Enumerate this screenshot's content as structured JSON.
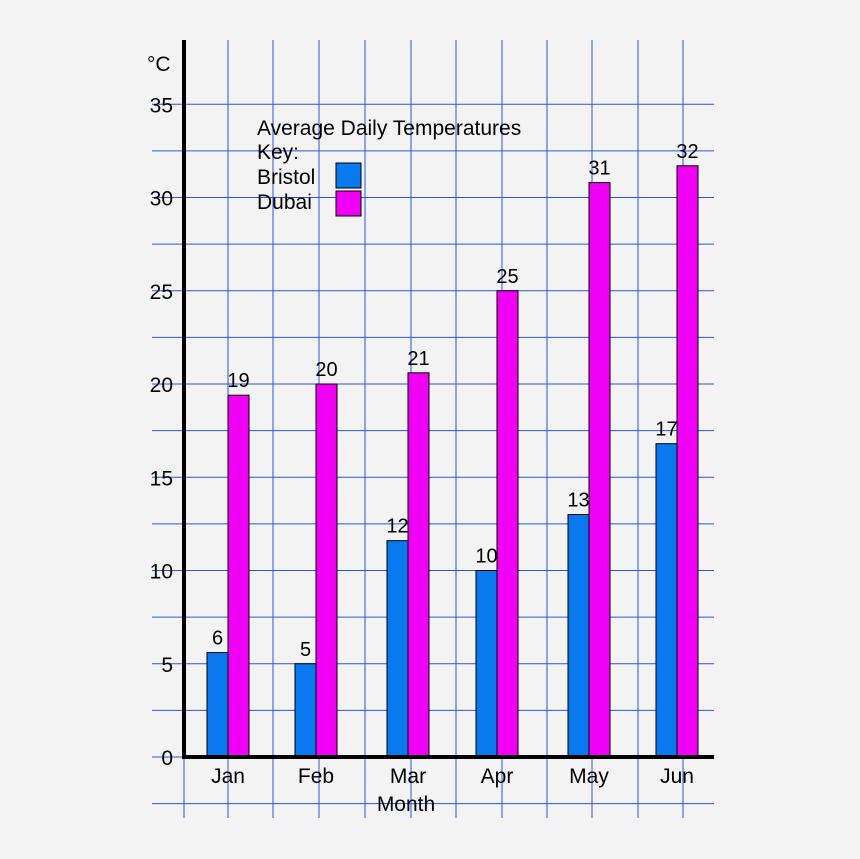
{
  "chart_data": {
    "type": "bar",
    "title": "Average Daily Temperatures",
    "legend_heading": "Key:",
    "xlabel": "Month",
    "ylabel": "°C",
    "categories": [
      "Jan",
      "Feb",
      "Mar",
      "Apr",
      "May",
      "Jun"
    ],
    "series": [
      {
        "name": "Bristol",
        "color": "#0a79f0",
        "values": [
          5.6,
          5.0,
          11.6,
          10.0,
          13.0,
          16.8
        ],
        "labels": [
          "6",
          "5",
          "12",
          "10",
          "13",
          "17"
        ]
      },
      {
        "name": "Dubai",
        "color": "#f000f5",
        "values": [
          19.4,
          20.0,
          20.6,
          25.0,
          30.8,
          31.7
        ],
        "labels": [
          "19",
          "20",
          "21",
          "25",
          "31",
          "32"
        ]
      }
    ],
    "ylim": [
      0,
      35
    ],
    "yticks": [
      0,
      5,
      10,
      15,
      20,
      25,
      30,
      35
    ],
    "grid": true,
    "legend_position": "top-left"
  }
}
